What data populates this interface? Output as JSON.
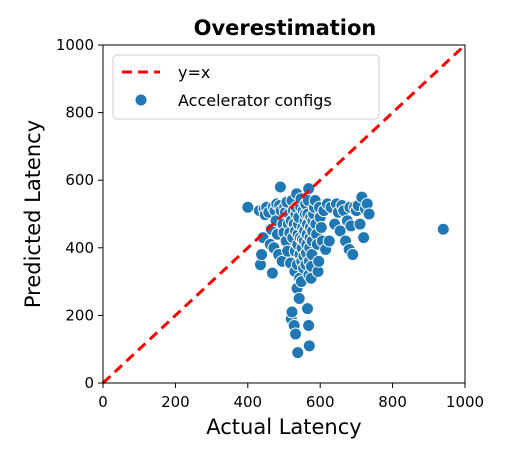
{
  "chart_data": {
    "type": "scatter",
    "title": "Overestimation",
    "xlabel": "Actual Latency",
    "ylabel": "Predicted Latency",
    "xlim": [
      0,
      1000
    ],
    "ylim": [
      0,
      1000
    ],
    "xticks": [
      "0",
      "200",
      "400",
      "600",
      "800",
      "1000"
    ],
    "yticks": [
      "0",
      "200",
      "400",
      "600",
      "800",
      "1000"
    ],
    "grid": false,
    "legend_position": "top-left",
    "colors": {
      "points": "#1f77b4",
      "point_edge": "#ffffff",
      "reference": "#ff0000"
    },
    "series": [
      {
        "name": "y=x",
        "kind": "line",
        "style": "dashed",
        "x": [
          0,
          1000
        ],
        "y": [
          0,
          1000
        ]
      },
      {
        "name": "Accelerator configs",
        "kind": "scatter",
        "points": [
          [
            400,
            520
          ],
          [
            432,
            510
          ],
          [
            435,
            350
          ],
          [
            438,
            380
          ],
          [
            442,
            430
          ],
          [
            445,
            515
          ],
          [
            448,
            498
          ],
          [
            452,
            520
          ],
          [
            458,
            505
          ],
          [
            462,
            410
          ],
          [
            465,
            455
          ],
          [
            468,
            325
          ],
          [
            470,
            520
          ],
          [
            472,
            400
          ],
          [
            475,
            510
          ],
          [
            478,
            480
          ],
          [
            480,
            530
          ],
          [
            482,
            440
          ],
          [
            485,
            380
          ],
          [
            488,
            525
          ],
          [
            490,
            580
          ],
          [
            492,
            510
          ],
          [
            495,
            360
          ],
          [
            497,
            470
          ],
          [
            500,
            445
          ],
          [
            502,
            520
          ],
          [
            504,
            505
          ],
          [
            506,
            420
          ],
          [
            508,
            535
          ],
          [
            510,
            390
          ],
          [
            512,
            470
          ],
          [
            514,
            500
          ],
          [
            516,
            445
          ],
          [
            518,
            355
          ],
          [
            520,
            480
          ],
          [
            522,
            540
          ],
          [
            524,
            430
          ],
          [
            526,
            510
          ],
          [
            528,
            470
          ],
          [
            530,
            330
          ],
          [
            531,
            390
          ],
          [
            532,
            450
          ],
          [
            533,
            500
          ],
          [
            534,
            520
          ],
          [
            535,
            560
          ],
          [
            536,
            280
          ],
          [
            537,
            350
          ],
          [
            538,
            410
          ],
          [
            539,
            440
          ],
          [
            540,
            470
          ],
          [
            541,
            490
          ],
          [
            542,
            250
          ],
          [
            543,
            310
          ],
          [
            544,
            380
          ],
          [
            545,
            430
          ],
          [
            546,
            520
          ],
          [
            547,
            545
          ],
          [
            548,
            300
          ],
          [
            549,
            360
          ],
          [
            550,
            400
          ],
          [
            551,
            425
          ],
          [
            552,
            460
          ],
          [
            553,
            510
          ],
          [
            554,
            340
          ],
          [
            555,
            375
          ],
          [
            556,
            420
          ],
          [
            557,
            450
          ],
          [
            558,
            480
          ],
          [
            559,
            500
          ],
          [
            560,
            530
          ],
          [
            561,
            350
          ],
          [
            562,
            385
          ],
          [
            563,
            410
          ],
          [
            564,
            440
          ],
          [
            565,
            470
          ],
          [
            566,
            500
          ],
          [
            567,
            540
          ],
          [
            568,
            575
          ],
          [
            569,
            320
          ],
          [
            570,
            360
          ],
          [
            571,
            400
          ],
          [
            572,
            430
          ],
          [
            573,
            460
          ],
          [
            574,
            490
          ],
          [
            575,
            310
          ],
          [
            576,
            345
          ],
          [
            577,
            380
          ],
          [
            578,
            420
          ],
          [
            579,
            450
          ],
          [
            580,
            480
          ],
          [
            582,
            500
          ],
          [
            584,
            520
          ],
          [
            586,
            540
          ],
          [
            588,
            470
          ],
          [
            590,
            440
          ],
          [
            592,
            410
          ],
          [
            594,
            330
          ],
          [
            596,
            360
          ],
          [
            598,
            520
          ],
          [
            600,
            490
          ],
          [
            603,
            460
          ],
          [
            606,
            420
          ],
          [
            610,
            510
          ],
          [
            615,
            395
          ],
          [
            620,
            530
          ],
          [
            625,
            420
          ],
          [
            630,
            520
          ],
          [
            640,
            470
          ],
          [
            645,
            530
          ],
          [
            650,
            505
          ],
          [
            655,
            450
          ],
          [
            660,
            525
          ],
          [
            665,
            510
          ],
          [
            670,
            420
          ],
          [
            675,
            480
          ],
          [
            680,
            395
          ],
          [
            682,
            520
          ],
          [
            685,
            465
          ],
          [
            690,
            380
          ],
          [
            695,
            520
          ],
          [
            700,
            510
          ],
          [
            705,
            525
          ],
          [
            710,
            470
          ],
          [
            715,
            550
          ],
          [
            720,
            430
          ],
          [
            725,
            515
          ],
          [
            730,
            530
          ],
          [
            735,
            500
          ],
          [
            940,
            455
          ],
          [
            520,
            190
          ],
          [
            522,
            210
          ],
          [
            528,
            170
          ],
          [
            532,
            145
          ],
          [
            538,
            90
          ],
          [
            565,
            220
          ],
          [
            568,
            170
          ],
          [
            570,
            110
          ]
        ]
      }
    ]
  }
}
